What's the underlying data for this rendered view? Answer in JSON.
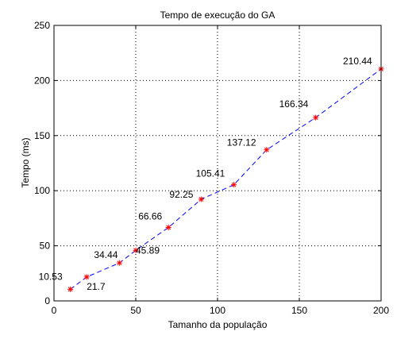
{
  "chart_data": {
    "type": "line",
    "title": "Tempo de execução do GA",
    "xlabel": "Tamanho da população",
    "ylabel": "Tempo (ms)",
    "xlim": [
      0,
      200
    ],
    "ylim": [
      0,
      250
    ],
    "xticks": [
      0,
      50,
      100,
      150,
      200
    ],
    "yticks": [
      0,
      50,
      100,
      150,
      200,
      250
    ],
    "grid": true,
    "series": [
      {
        "x": [
          10,
          20,
          40,
          50,
          70,
          90,
          110,
          130,
          160,
          200
        ],
        "y": [
          10.53,
          21.7,
          34.44,
          45.89,
          66.66,
          92.25,
          105.41,
          137.12,
          166.34,
          210.44
        ],
        "labels": [
          "10.53",
          "21.7",
          "34.44",
          "45.89",
          "66.66",
          "92.25",
          "105.41",
          "137.12",
          "166.34",
          "210.44"
        ],
        "line_color": "#0000ff",
        "line_style": "dashed",
        "marker": "asterisk",
        "marker_color": "#ff0000"
      }
    ]
  }
}
